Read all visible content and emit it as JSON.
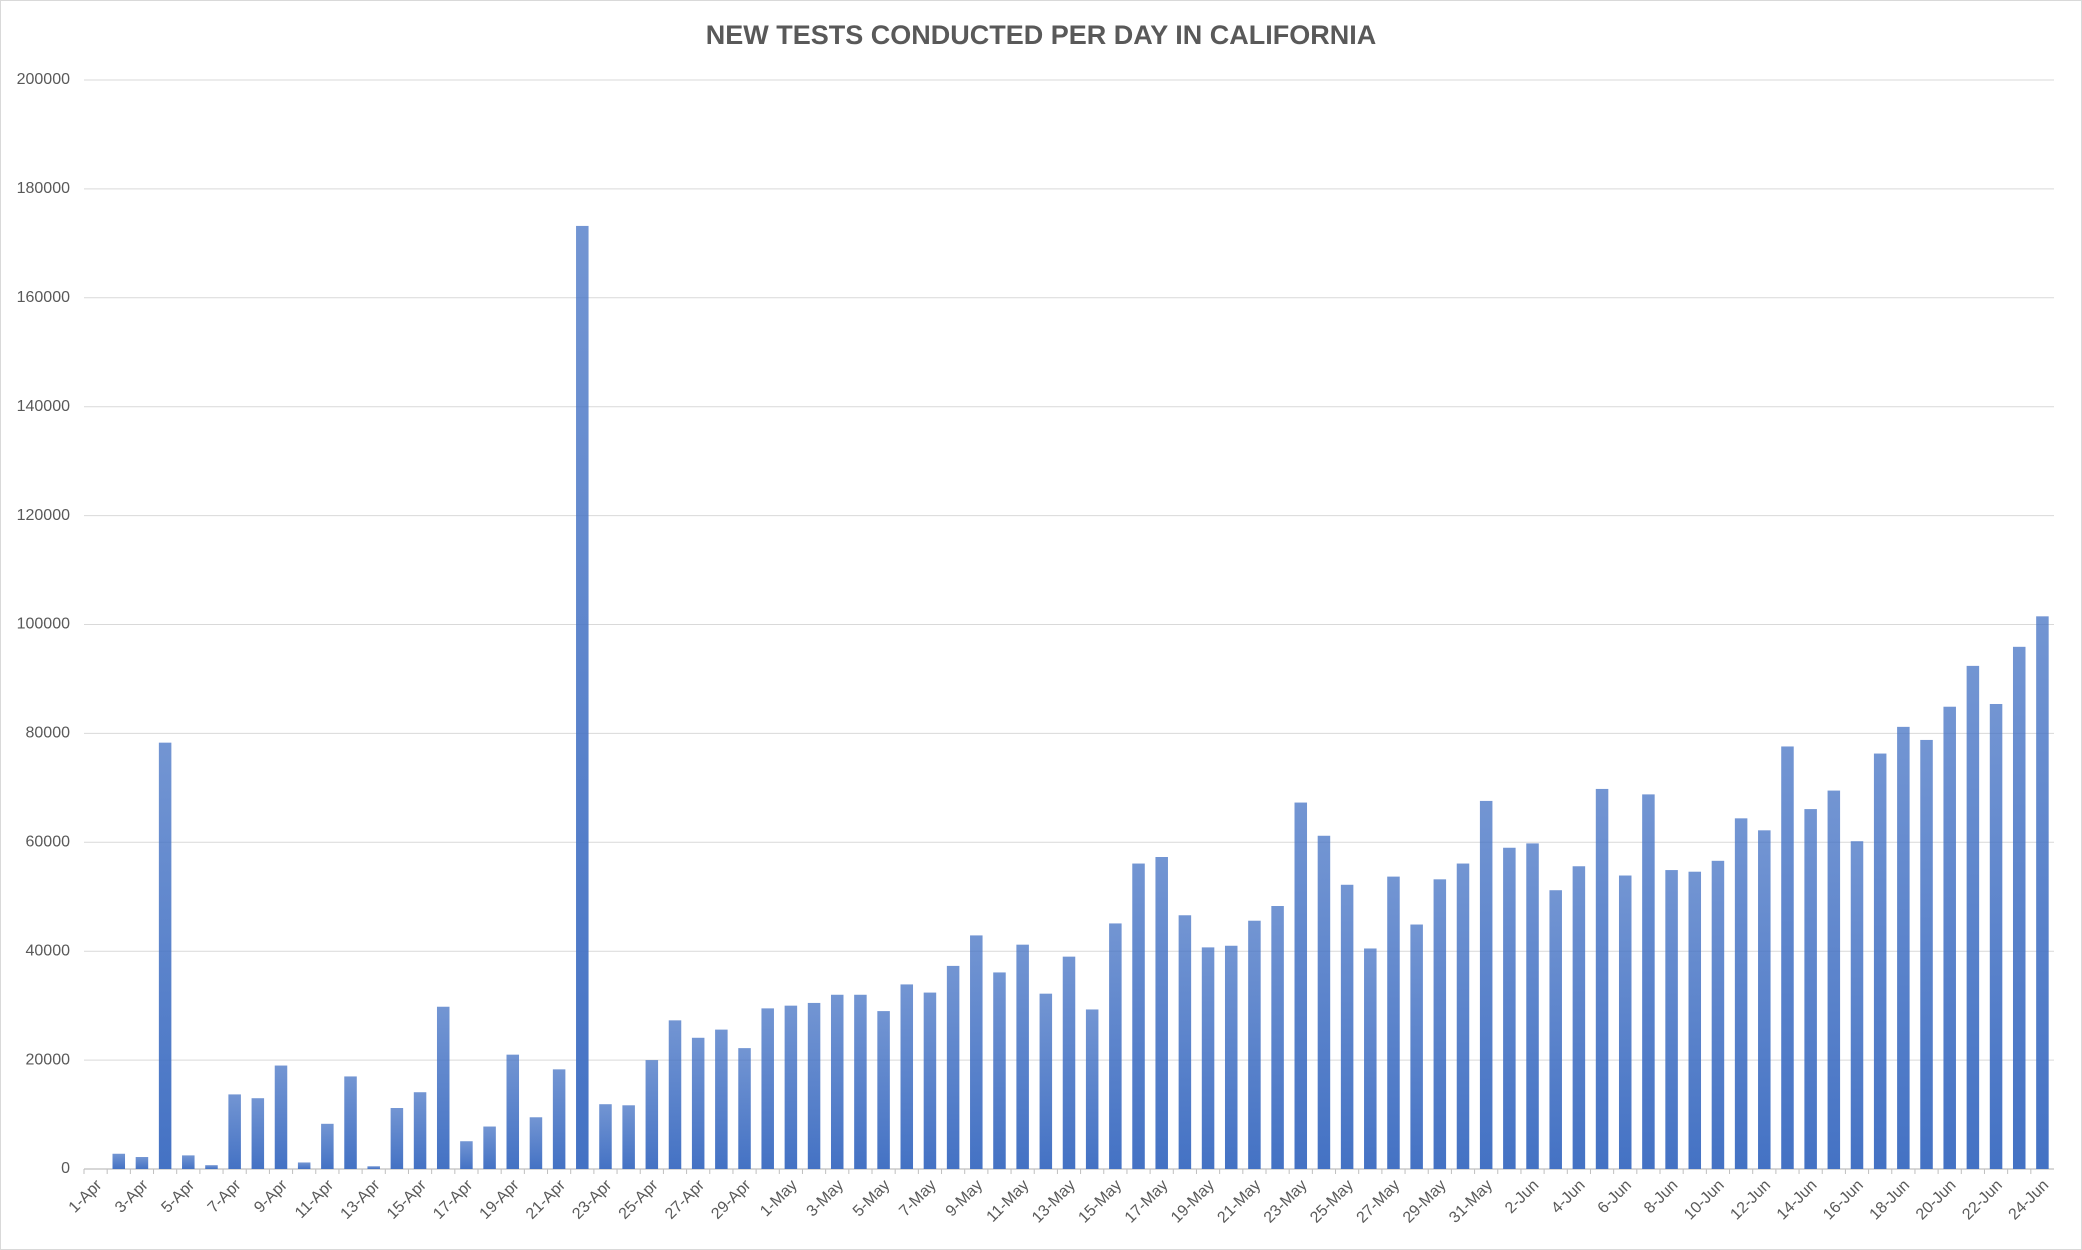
{
  "chart_data": {
    "type": "bar",
    "title": "NEW TESTS CONDUCTED PER DAY IN CALIFORNIA",
    "categories": [
      "1-Apr",
      null,
      "3-Apr",
      null,
      "5-Apr",
      null,
      "7-Apr",
      null,
      "9-Apr",
      null,
      "11-Apr",
      null,
      "13-Apr",
      null,
      "15-Apr",
      null,
      "17-Apr",
      null,
      "19-Apr",
      null,
      "21-Apr",
      null,
      "23-Apr",
      null,
      "25-Apr",
      null,
      "27-Apr",
      null,
      "29-Apr",
      null,
      "1-May",
      null,
      "3-May",
      null,
      "5-May",
      null,
      "7-May",
      null,
      "9-May",
      null,
      "11-May",
      null,
      "13-May",
      null,
      "15-May",
      null,
      "17-May",
      null,
      "19-May",
      null,
      "21-May",
      null,
      "23-May",
      null,
      "25-May",
      null,
      "27-May",
      null,
      "29-May",
      null,
      "31-May",
      null,
      "2-Jun",
      null,
      "4-Jun",
      null,
      "6-Jun",
      null,
      "8-Jun",
      null,
      "10-Jun",
      null,
      "12-Jun",
      null,
      "14-Jun",
      null,
      "16-Jun",
      null,
      "18-Jun",
      null,
      "20-Jun",
      null,
      "22-Jun",
      null,
      "24-Jun"
    ],
    "values": [
      null,
      2800,
      2200,
      78300,
      2500,
      700,
      13700,
      13000,
      19000,
      1200,
      8300,
      17000,
      500,
      11200,
      14100,
      29800,
      5100,
      7800,
      21000,
      9500,
      18300,
      173200,
      11900,
      11700,
      20000,
      27300,
      24100,
      25600,
      22200,
      29500,
      30000,
      30500,
      32000,
      32000,
      29000,
      33900,
      32400,
      37300,
      42900,
      36100,
      41200,
      32200,
      39000,
      29300,
      45100,
      56100,
      57300,
      46600,
      40700,
      41000,
      45600,
      48300,
      67300,
      61200,
      52200,
      40500,
      53700,
      44900,
      53200,
      56100,
      67600,
      59000,
      59800,
      51200,
      55600,
      69800,
      53900,
      68800,
      54900,
      54600,
      56600,
      64400,
      62200,
      77600,
      66100,
      69500,
      60200,
      76300,
      81200,
      78800,
      84900,
      92400,
      85400,
      95900,
      101500
    ],
    "color": "#4472c4",
    "ylim": [
      0,
      200000
    ],
    "yticks": [
      0,
      20000,
      40000,
      60000,
      80000,
      100000,
      120000,
      140000,
      160000,
      180000,
      200000
    ],
    "grid": true
  }
}
